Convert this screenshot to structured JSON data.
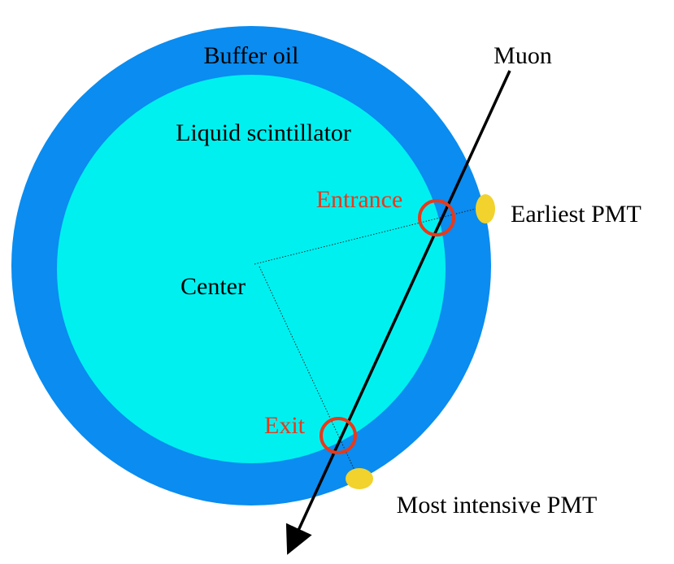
{
  "labels": {
    "buffer": "Buffer oil",
    "scintillator": "Liquid scintillator",
    "muon": "Muon",
    "entrance": "Entrance",
    "earliest_pmt": "Earliest PMT",
    "center": "Center",
    "exit": "Exit",
    "most_intensive_pmt": "Most intensive PMT"
  },
  "colors": {
    "buffer_oil": "#0a8cf0",
    "scintillator": "#00f0f0",
    "pmt": "#f2d22c",
    "marker": "#e8391a",
    "muon_track": "#000000",
    "label_red": "#e8391a"
  }
}
